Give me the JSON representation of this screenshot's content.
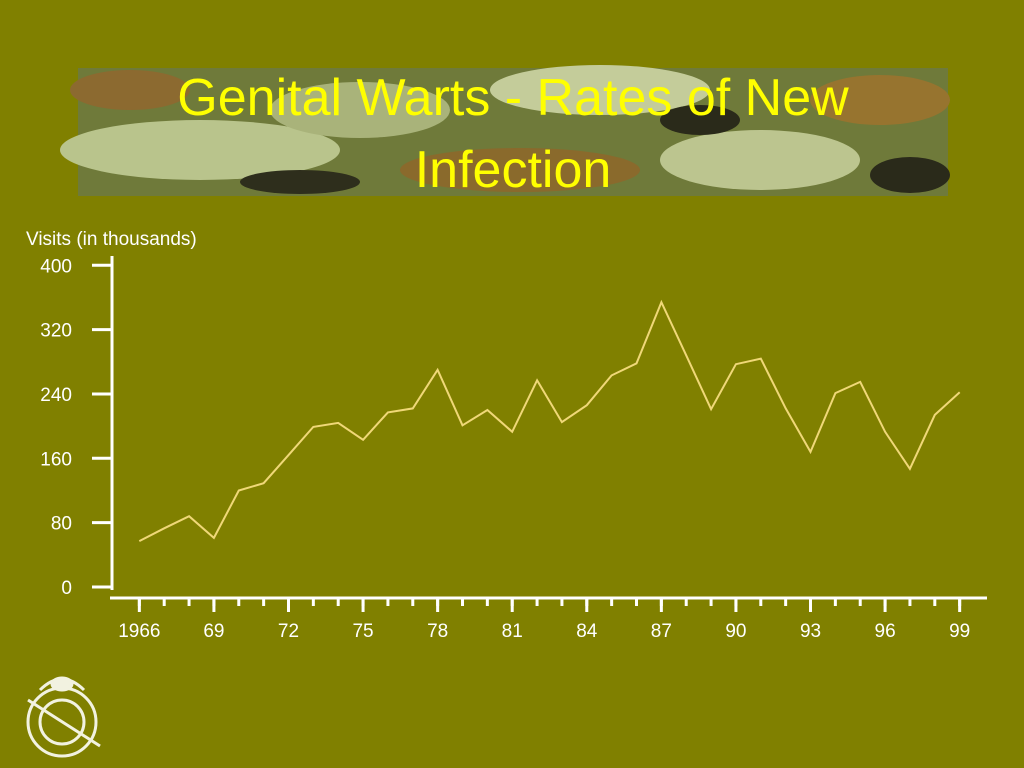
{
  "chart_data": {
    "type": "line",
    "title": "Genital Warts - Rates of New Infection",
    "y_label": "Visits (in thousands)",
    "x": [
      1966,
      1967,
      1968,
      1969,
      1970,
      1971,
      1972,
      1973,
      1974,
      1975,
      1976,
      1977,
      1978,
      1979,
      1980,
      1981,
      1982,
      1983,
      1984,
      1985,
      1986,
      1987,
      1988,
      1989,
      1990,
      1991,
      1992,
      1993,
      1994,
      1995,
      1996,
      1997,
      1998,
      1999
    ],
    "values": [
      57,
      73,
      88,
      61,
      120,
      129,
      164,
      199,
      204,
      183,
      217,
      222,
      270,
      201,
      220,
      193,
      257,
      205,
      226,
      263,
      278,
      354,
      288,
      221,
      277,
      284,
      222,
      168,
      241,
      255,
      193,
      147,
      214,
      242
    ],
    "color": "#f0d878",
    "xlim": [
      1964.9,
      2000.1
    ],
    "xticks": [
      1966,
      {
        "value": 1969,
        "label": "69"
      },
      {
        "value": 1972,
        "label": "72"
      },
      {
        "value": 1975,
        "label": "75"
      },
      {
        "value": 1978,
        "label": "78"
      },
      {
        "value": 1981,
        "label": "81"
      },
      {
        "value": 1984,
        "label": "84"
      },
      {
        "value": 1987,
        "label": "87"
      },
      {
        "value": 1990,
        "label": "90"
      },
      {
        "value": 1993,
        "label": "93"
      },
      {
        "value": 1996,
        "label": "96"
      },
      {
        "value": 1999,
        "label": "99"
      }
    ],
    "ylim": [
      0,
      409
    ],
    "yticks": [
      0,
      80,
      160,
      240,
      320,
      400
    ],
    "grid": false
  }
}
